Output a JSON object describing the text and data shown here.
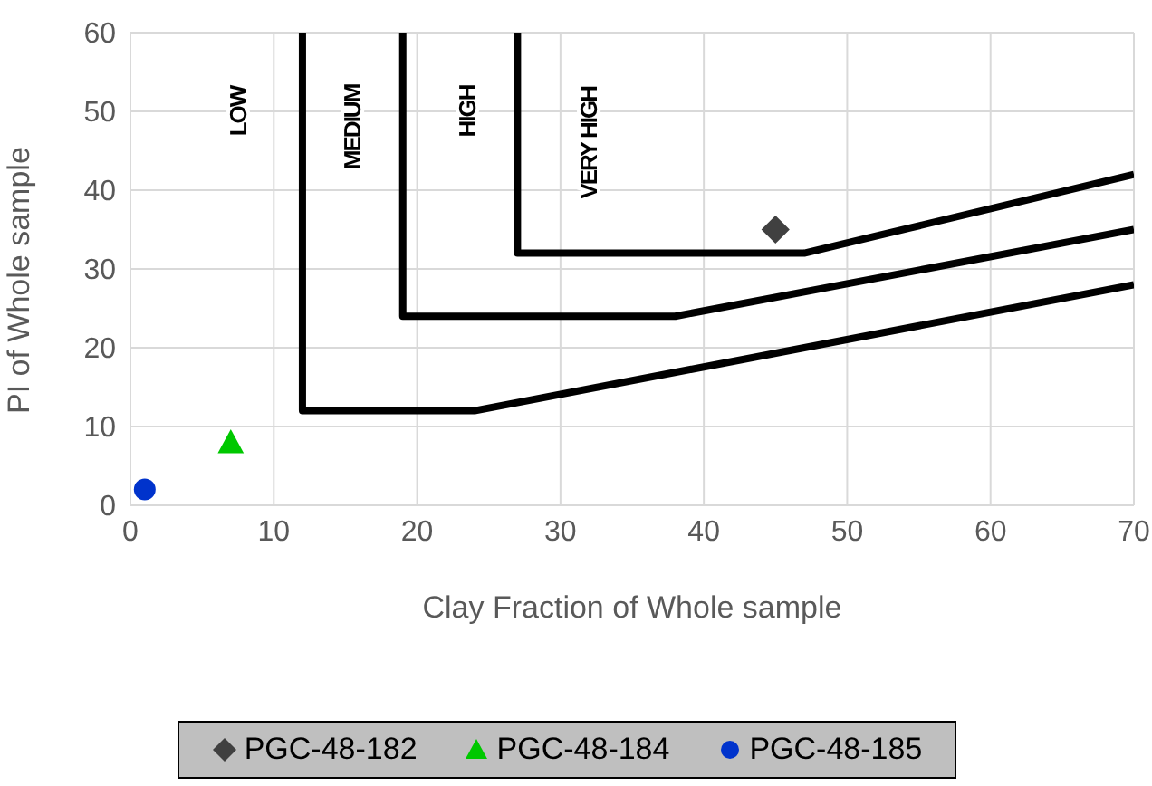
{
  "chart_data": {
    "type": "scatter",
    "xlabel": "Clay Fraction of Whole sample",
    "ylabel": "PI of Whole sample",
    "xlim": [
      0,
      70
    ],
    "xticks": [
      0,
      10,
      20,
      30,
      40,
      50,
      60,
      70
    ],
    "ylim": [
      0,
      60
    ],
    "yticks": [
      0,
      10,
      20,
      30,
      40,
      50,
      60
    ],
    "grid": true,
    "legend": "bottom",
    "series": [
      {
        "type": "line",
        "color": "#000000",
        "x": [
          12,
          12,
          24,
          70
        ],
        "values": [
          60,
          12,
          12,
          28
        ],
        "marker": "none"
      },
      {
        "type": "line",
        "color": "#000000",
        "x": [
          19,
          19,
          38,
          70
        ],
        "values": [
          60,
          24,
          24,
          35
        ],
        "marker": "none"
      },
      {
        "type": "line",
        "color": "#000000",
        "x": [
          27,
          27,
          47,
          70
        ],
        "values": [
          60,
          32,
          32,
          42
        ],
        "marker": "none"
      },
      {
        "name": "PGC-48-182",
        "color": "#404040",
        "x": [
          45
        ],
        "values": [
          35
        ],
        "marker": "diamond"
      },
      {
        "name": "PGC-48-184",
        "color": "#00c800",
        "x": [
          7
        ],
        "values": [
          8
        ],
        "marker": "triangle"
      },
      {
        "name": "PGC-48-185",
        "color": "#0033cc",
        "x": [
          1
        ],
        "values": [
          2
        ],
        "marker": "circle"
      }
    ],
    "annotations": [
      "LOW",
      "MEDIUM",
      "HIGH",
      "VERY HIGH"
    ]
  }
}
